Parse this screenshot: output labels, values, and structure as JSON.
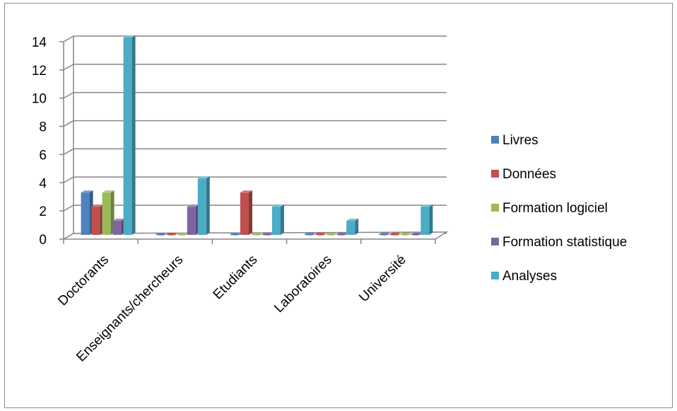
{
  "chart_data": {
    "type": "bar",
    "style": "3d-clustered-column",
    "categories": [
      "Doctorants",
      "Enseignants/chercheurs",
      "Etudiants",
      "Laboratoires",
      "Université"
    ],
    "series": [
      {
        "name": "Livres",
        "color": "#4f81bd",
        "values": [
          3,
          0,
          0,
          0,
          0
        ]
      },
      {
        "name": "Données",
        "color": "#c0504d",
        "values": [
          2,
          0,
          3,
          0,
          0
        ]
      },
      {
        "name": "Formation logiciel",
        "color": "#9bbb59",
        "values": [
          3,
          0,
          0,
          0,
          0
        ]
      },
      {
        "name": "Formation statistique",
        "color": "#8064a2",
        "values": [
          1,
          2,
          0,
          0,
          0
        ]
      },
      {
        "name": "Analyses",
        "color": "#4bacc6",
        "values": [
          14,
          4,
          2,
          1,
          2
        ]
      }
    ],
    "yticks": [
      "0",
      "2",
      "4",
      "6",
      "8",
      "10",
      "12",
      "14"
    ],
    "ylim": [
      0,
      14
    ],
    "grid": true,
    "legend_position": "right"
  }
}
